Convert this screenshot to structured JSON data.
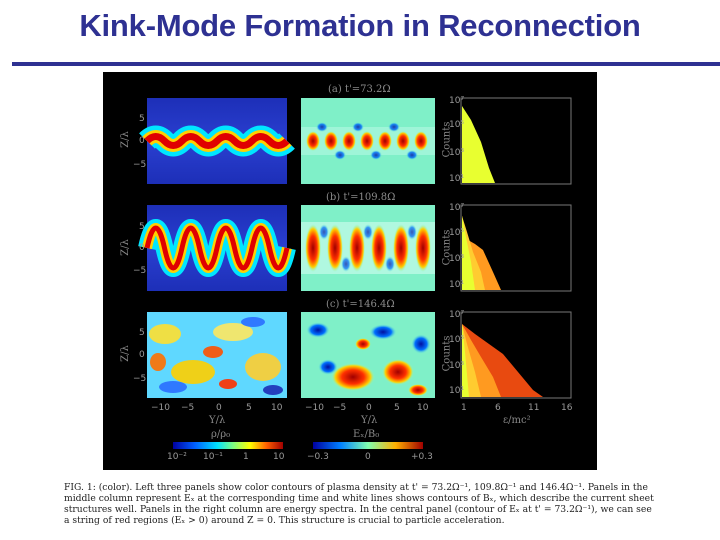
{
  "slide": {
    "title": "Kink-Mode Formation in Reconnection"
  },
  "figure": {
    "row_labels": [
      "(a) t'=73.2Ω",
      "(b) t'=109.8Ω",
      "(c) t'=146.4Ω"
    ],
    "y_axis_label": "Z/λ",
    "x_axis_label": "Y/λ",
    "spectrum_y_label": "Counts",
    "spectrum_x_label": "ε/mc²",
    "y_ticks": [
      "5",
      "0",
      "−5"
    ],
    "x_ticks": [
      "−10",
      "−5",
      "0",
      "5",
      "10"
    ],
    "spectrum_x_ticks": [
      "1",
      "6",
      "11",
      "16"
    ],
    "spectrum_y_ticks": [
      "10⁷",
      "10⁵",
      "10³",
      "10¹"
    ],
    "colorbar_left": {
      "label": "ρ/ρ₀",
      "ticks": [
        "10⁻²",
        "10⁻¹",
        "1",
        "10"
      ]
    },
    "colorbar_mid": {
      "label": "Eₓ/B₀",
      "ticks": [
        "−0.3",
        "0",
        "+0.3"
      ]
    }
  },
  "caption": {
    "text": "FIG. 1: (color). Left three panels show color contours of plasma density at t' = 73.2Ω⁻¹, 109.8Ω⁻¹ and 146.4Ω⁻¹. Panels in the middle column represent Eₓ at the corresponding time and white lines shows contours of Bₓ, which describe the current sheet structures well. Panels in the right column are energy spectra. In the central panel (contour of Eₓ at t' = 73.2Ω⁻¹), we can see a string of red regions (Eₓ > 0) around Z = 0. This structure is crucial to particle acceleration."
  }
}
